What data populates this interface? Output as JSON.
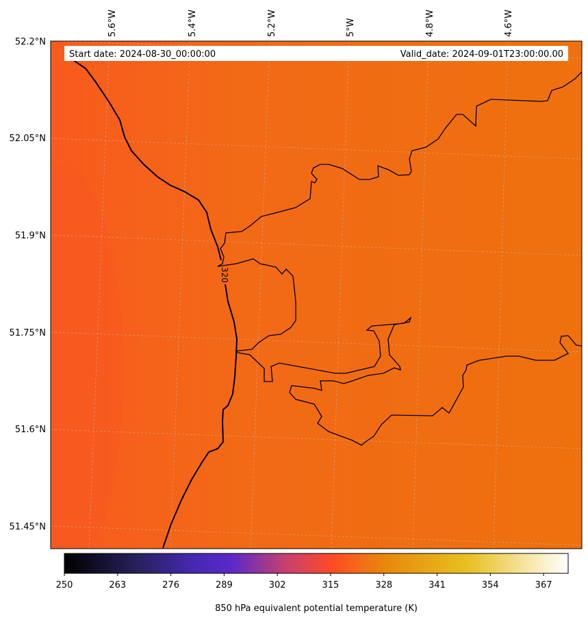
{
  "header": {
    "start_date": "Start date: 2024-08-30_00:00:00",
    "valid_date": "Valid_date: 2024-09-01T23:00:00.00"
  },
  "map": {
    "lon_labels": [
      "5.6°W",
      "5.4°W",
      "5.2°W",
      "5°W",
      "4.8°W",
      "4.6°W"
    ],
    "lat_labels": [
      "52.2°N",
      "52.05°N",
      "51.9°N",
      "51.75°N",
      "51.6°N",
      "51.45°N"
    ],
    "contour_label": "320",
    "field_colors": {
      "warm_west": "#f85a1e",
      "mid": "#f26916",
      "east": "#ee710e"
    },
    "coastline_color": "#000000"
  },
  "colorbar": {
    "title": "850 hPa equivalent potential temperature (K)",
    "range": [
      250,
      373
    ],
    "ticks": [
      "250",
      "263",
      "276",
      "289",
      "302",
      "315",
      "328",
      "341",
      "354",
      "367"
    ],
    "colors": [
      "#000000",
      "#26205a",
      "#5a28c8",
      "#c8406e",
      "#ff4a25",
      "#e88a0a",
      "#e8c020",
      "#ffffff"
    ]
  }
}
